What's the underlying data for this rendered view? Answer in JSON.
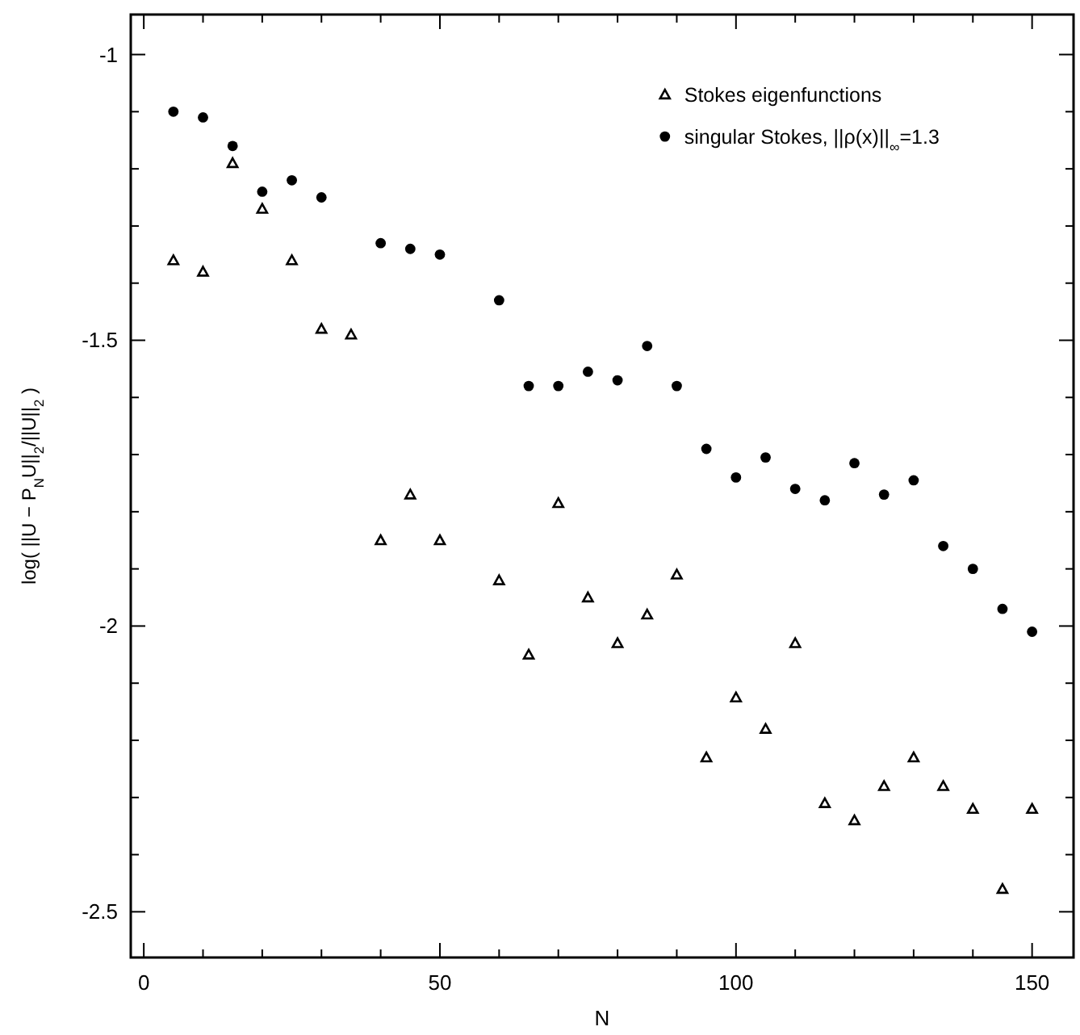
{
  "chart_data": {
    "type": "scatter",
    "xlabel": "N",
    "ylabel": "log( ||U − P$_{N}$U||$_{2}$/||U||$_{2}$ )",
    "legend": "top right",
    "grid": false,
    "xlim": [
      -2.2,
      157
    ],
    "xticks": [
      0,
      {
        "value": 10,
        "label": null
      },
      {
        "value": 20,
        "label": null
      },
      {
        "value": 30,
        "label": null
      },
      {
        "value": 40,
        "label": null
      },
      50,
      {
        "value": 60,
        "label": null
      },
      {
        "value": 70,
        "label": null
      },
      {
        "value": 80,
        "label": null
      },
      {
        "value": 90,
        "label": null
      },
      100,
      {
        "value": 110,
        "label": null
      },
      {
        "value": 120,
        "label": null
      },
      {
        "value": 130,
        "label": null
      },
      {
        "value": 140,
        "label": null
      },
      150
    ],
    "ylim": [
      -2.58,
      -0.93
    ],
    "yticks": [
      -1,
      {
        "value": -1.1,
        "label": null
      },
      {
        "value": -1.2,
        "label": null
      },
      {
        "value": -1.3,
        "label": null
      },
      {
        "value": -1.4,
        "label": null
      },
      -1.5,
      {
        "value": -1.6,
        "label": null
      },
      {
        "value": -1.7,
        "label": null
      },
      {
        "value": -1.8,
        "label": null
      },
      {
        "value": -1.9,
        "label": null
      },
      -2,
      {
        "value": -2.1,
        "label": null
      },
      {
        "value": -2.2,
        "label": null
      },
      {
        "value": -2.3,
        "label": null
      },
      {
        "value": -2.4,
        "label": null
      },
      -2.5
    ],
    "series": [
      {
        "name": "Stokes eigenfunctions",
        "color": "#000000",
        "marker": "triangle",
        "x": [
          5,
          10,
          15,
          20,
          25,
          30,
          35,
          40,
          45,
          50,
          60,
          65,
          70,
          75,
          80,
          85,
          90,
          95,
          100,
          105,
          110,
          115,
          120,
          125,
          130,
          135,
          140,
          145,
          150
        ],
        "values": [
          -1.36,
          -1.38,
          -1.19,
          -1.27,
          -1.36,
          -1.48,
          -1.49,
          -1.85,
          -1.77,
          -1.85,
          -1.92,
          -2.05,
          -1.785,
          -1.95,
          -2.03,
          -1.98,
          -1.91,
          -2.23,
          -2.125,
          -2.18,
          -2.03,
          -2.31,
          -2.34,
          -2.28,
          -2.23,
          -2.28,
          -2.32,
          -2.46,
          -2.32
        ]
      },
      {
        "name": "singular Stokes, ||ρ(x)||$_{∞}$=1.3",
        "color": "#000000",
        "marker": "circle",
        "x": [
          5,
          10,
          15,
          20,
          25,
          30,
          40,
          45,
          50,
          60,
          65,
          70,
          75,
          80,
          85,
          90,
          95,
          100,
          105,
          110,
          115,
          120,
          125,
          130,
          135,
          140,
          145,
          150
        ],
        "values": [
          -1.1,
          -1.11,
          -1.16,
          -1.24,
          -1.22,
          -1.25,
          -1.33,
          -1.34,
          -1.35,
          -1.43,
          -1.58,
          -1.58,
          -1.555,
          -1.57,
          -1.51,
          -1.58,
          -1.69,
          -1.74,
          -1.705,
          -1.76,
          -1.78,
          -1.715,
          -1.77,
          -1.745,
          -1.86,
          -1.9,
          -1.97,
          -2.01
        ]
      }
    ]
  }
}
